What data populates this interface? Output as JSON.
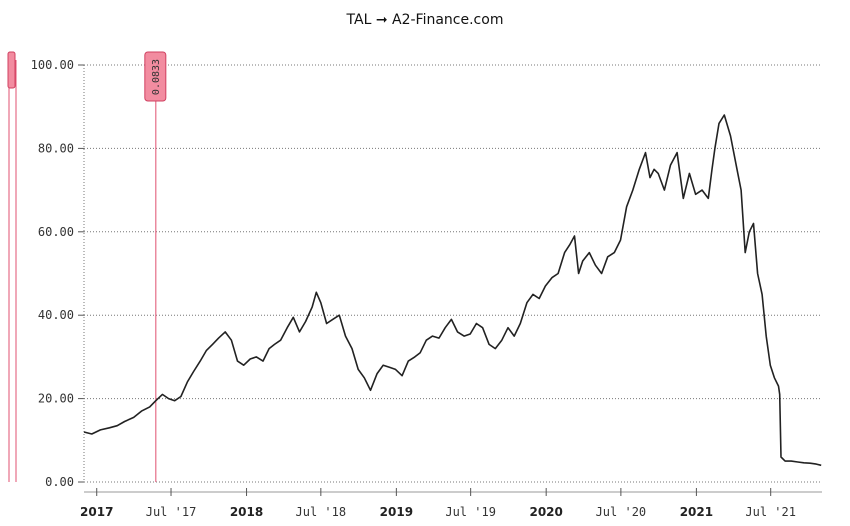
{
  "title": "TAL ➞ A2-Finance.com",
  "chart_data": {
    "type": "line",
    "title": "TAL ➞ A2-Finance.com",
    "xlabel": "",
    "ylabel": "",
    "x_range": [
      "2016-12-01",
      "2021-11-03"
    ],
    "ylim": [
      0,
      100
    ],
    "y_ticks": [
      "0.00",
      "20.00",
      "40.00",
      "60.00",
      "80.00",
      "100.00"
    ],
    "y_tick_values": [
      0,
      20,
      40,
      60,
      80,
      100
    ],
    "grid": "horizontal dotted",
    "line_color": "#222222",
    "marker_color": "#e05070",
    "x_ticks": [
      {
        "date": "2017-01-01",
        "label": "2017",
        "year": true
      },
      {
        "date": "2017-07-01",
        "label": "Jul '17",
        "year": false
      },
      {
        "date": "2018-01-01",
        "label": "2018",
        "year": true
      },
      {
        "date": "2018-07-01",
        "label": "Jul '18",
        "year": false
      },
      {
        "date": "2019-01-01",
        "label": "2019",
        "year": true
      },
      {
        "date": "2019-07-01",
        "label": "Jul '19",
        "year": false
      },
      {
        "date": "2020-01-01",
        "label": "2020",
        "year": true
      },
      {
        "date": "2020-07-01",
        "label": "Jul '20",
        "year": false
      },
      {
        "date": "2021-01-01",
        "label": "2021",
        "year": true
      },
      {
        "date": "2021-07-01",
        "label": "Jul '21",
        "year": false
      }
    ],
    "marker": {
      "date": "2017-05-25",
      "label": "0.0833"
    },
    "series": [
      {
        "x": [
          "2016-12-01",
          "2016-12-20",
          "2017-01-10",
          "2017-02-01",
          "2017-02-20",
          "2017-03-10",
          "2017-04-01",
          "2017-04-20",
          "2017-05-10",
          "2017-05-25",
          "2017-06-10",
          "2017-06-25",
          "2017-07-10",
          "2017-07-25",
          "2017-08-10",
          "2017-08-25",
          "2017-09-10",
          "2017-09-25",
          "2017-10-10",
          "2017-10-25",
          "2017-11-10",
          "2017-11-25",
          "2017-12-10",
          "2017-12-25",
          "2018-01-10",
          "2018-01-25",
          "2018-02-10",
          "2018-02-25",
          "2018-03-10",
          "2018-03-25",
          "2018-04-10",
          "2018-04-25",
          "2018-05-10",
          "2018-05-25",
          "2018-06-10",
          "2018-06-20",
          "2018-07-01",
          "2018-07-15",
          "2018-07-30",
          "2018-08-15",
          "2018-08-30",
          "2018-09-15",
          "2018-09-30",
          "2018-10-15",
          "2018-10-30",
          "2018-11-15",
          "2018-11-30",
          "2018-12-15",
          "2018-12-30",
          "2019-01-15",
          "2019-01-30",
          "2019-02-15",
          "2019-02-28",
          "2019-03-15",
          "2019-03-30",
          "2019-04-15",
          "2019-04-30",
          "2019-05-15",
          "2019-05-30",
          "2019-06-15",
          "2019-06-30",
          "2019-07-15",
          "2019-07-30",
          "2019-08-15",
          "2019-08-30",
          "2019-09-15",
          "2019-09-30",
          "2019-10-15",
          "2019-10-30",
          "2019-11-15",
          "2019-11-30",
          "2019-12-15",
          "2019-12-30",
          "2020-01-15",
          "2020-01-30",
          "2020-02-15",
          "2020-02-28",
          "2020-03-10",
          "2020-03-20",
          "2020-03-30",
          "2020-04-15",
          "2020-04-30",
          "2020-05-15",
          "2020-05-30",
          "2020-06-15",
          "2020-06-30",
          "2020-07-15",
          "2020-07-30",
          "2020-08-15",
          "2020-08-30",
          "2020-09-10",
          "2020-09-20",
          "2020-09-30",
          "2020-10-15",
          "2020-10-30",
          "2020-11-15",
          "2020-11-30",
          "2020-12-15",
          "2020-12-30",
          "2021-01-15",
          "2021-01-30",
          "2021-02-08",
          "2021-02-15",
          "2021-02-25",
          "2021-03-10",
          "2021-03-25",
          "2021-04-10",
          "2021-04-20",
          "2021-04-30",
          "2021-05-10",
          "2021-05-20",
          "2021-05-30",
          "2021-06-10",
          "2021-06-20",
          "2021-06-30",
          "2021-07-10",
          "2021-07-20",
          "2021-07-23",
          "2021-07-26",
          "2021-08-05",
          "2021-08-20",
          "2021-09-05",
          "2021-09-20",
          "2021-10-05",
          "2021-10-20",
          "2021-11-01"
        ],
        "y": [
          12.0,
          11.5,
          12.5,
          13.0,
          13.5,
          14.5,
          15.5,
          17.0,
          18.0,
          19.5,
          21.0,
          20.0,
          19.5,
          20.5,
          24.0,
          26.5,
          29.0,
          31.5,
          33.0,
          34.5,
          36.0,
          34.0,
          29.0,
          28.0,
          29.5,
          30.0,
          29.0,
          32.0,
          33.0,
          34.0,
          37.0,
          39.5,
          36.0,
          38.5,
          42.0,
          45.5,
          43.0,
          38.0,
          39.0,
          40.0,
          35.0,
          32.0,
          27.0,
          25.0,
          22.0,
          26.0,
          28.0,
          27.5,
          27.0,
          25.5,
          29.0,
          30.0,
          31.0,
          34.0,
          35.0,
          34.5,
          37.0,
          39.0,
          36.0,
          35.0,
          35.5,
          38.0,
          37.0,
          33.0,
          32.0,
          34.0,
          37.0,
          35.0,
          38.0,
          43.0,
          45.0,
          44.0,
          47.0,
          49.0,
          50.0,
          55.0,
          57.0,
          59.0,
          50.0,
          53.0,
          55.0,
          52.0,
          50.0,
          54.0,
          55.0,
          58.0,
          66.0,
          70.0,
          75.0,
          79.0,
          73.0,
          75.0,
          74.0,
          70.0,
          76.0,
          79.0,
          68.0,
          74.0,
          69.0,
          70.0,
          68.0,
          75.0,
          80.0,
          86.0,
          88.0,
          83.0,
          75.0,
          70.0,
          55.0,
          60.0,
          62.0,
          50.0,
          45.0,
          35.0,
          28.0,
          25.0,
          23.0,
          21.0,
          6.0,
          5.0,
          5.0,
          4.8,
          4.6,
          4.5,
          4.3,
          4.0
        ]
      }
    ]
  }
}
